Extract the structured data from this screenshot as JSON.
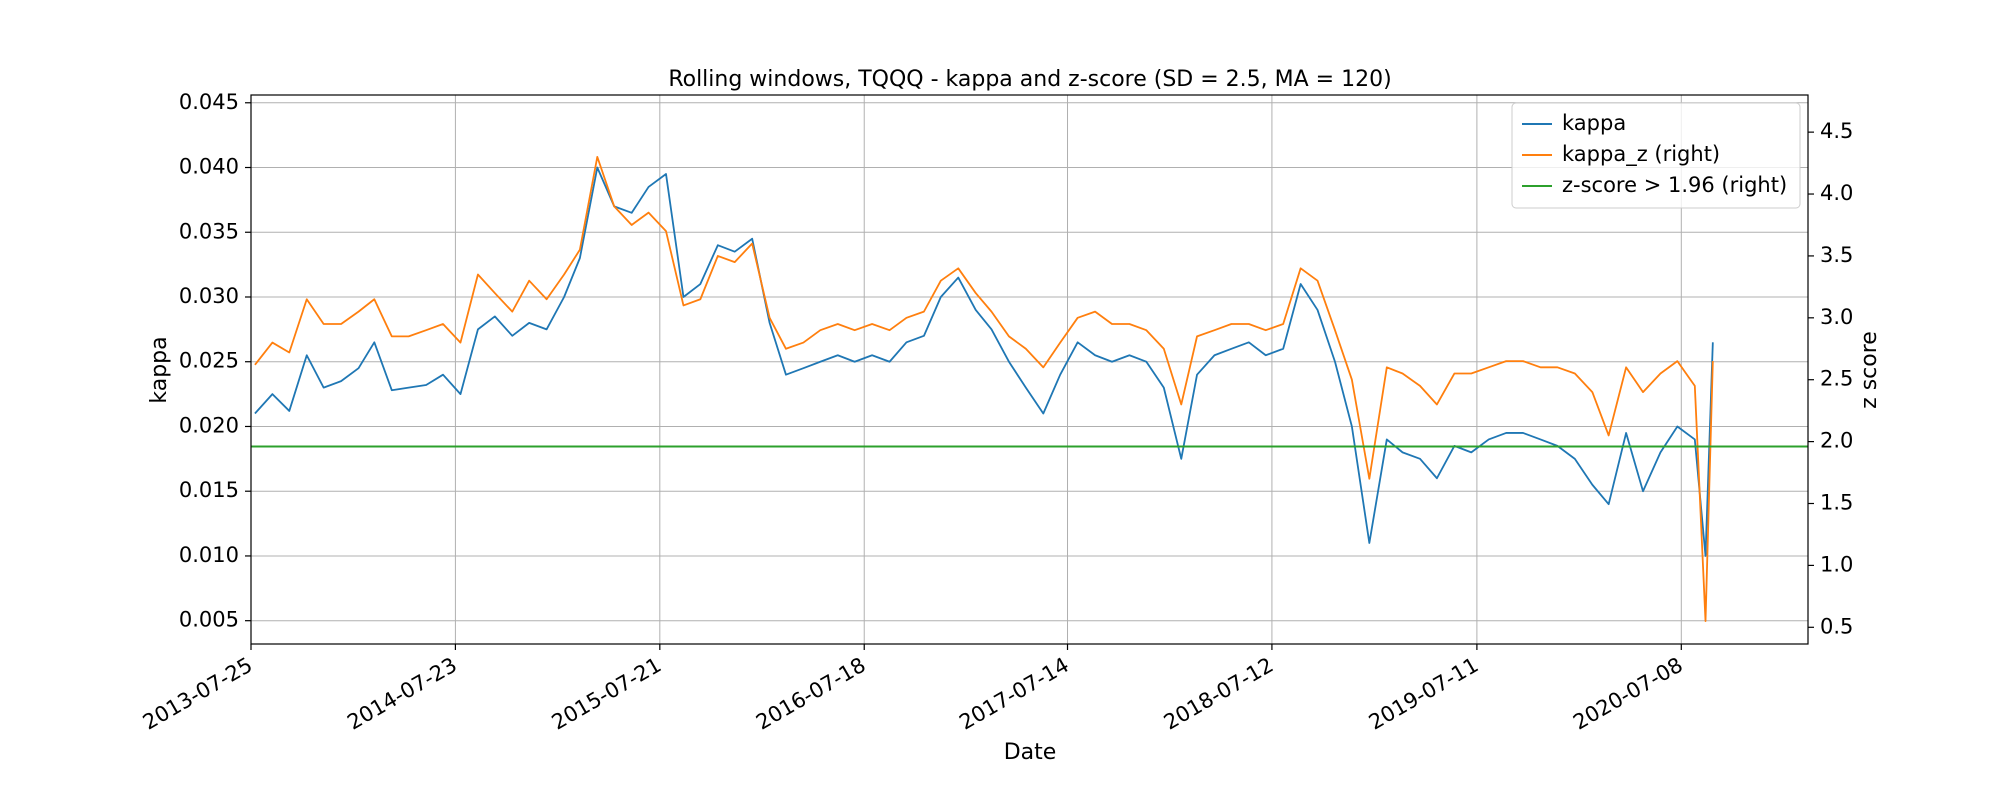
{
  "chart_data": {
    "type": "line",
    "title": "Rolling windows, TQQQ - kappa and z-score (SD = 2.5, MA = 120)",
    "x_label": "Date",
    "y_label": "kappa",
    "y2_label": "z score",
    "grid": true,
    "legend": "upper right",
    "xlim": [
      "2013-07-25",
      "2021-02-18"
    ],
    "xticks": [
      "2013-07-25",
      "2014-07-23",
      "2015-07-21",
      "2016-07-18",
      "2017-07-14",
      "2018-07-12",
      "2019-07-11",
      "2020-07-08"
    ],
    "ylim": [
      0.0032,
      0.0456
    ],
    "yticks": [
      0.005,
      {
        "value": 0.01,
        "label": "0.010"
      },
      0.015,
      {
        "value": 0.02,
        "label": "0.020"
      },
      0.025,
      {
        "value": 0.03,
        "label": "0.030"
      },
      0.035,
      {
        "value": 0.04,
        "label": "0.040"
      },
      0.045
    ],
    "y2lim": [
      0.365,
      4.8
    ],
    "y2ticks": [
      0.5,
      {
        "value": 1,
        "label": "1.0"
      },
      1.5,
      {
        "value": 2,
        "label": "2.0"
      },
      2.5,
      {
        "value": 3,
        "label": "3.0"
      },
      3.5,
      {
        "value": 4,
        "label": "4.0"
      },
      4.5
    ],
    "x": [
      "2013-08-01",
      "2013-09-01",
      "2013-10-01",
      "2013-11-01",
      "2013-12-01",
      "2014-01-01",
      "2014-02-01",
      "2014-03-01",
      "2014-04-01",
      "2014-05-01",
      "2014-06-01",
      "2014-07-01",
      "2014-08-01",
      "2014-09-01",
      "2014-10-01",
      "2014-11-01",
      "2014-12-01",
      "2015-01-01",
      "2015-02-01",
      "2015-03-01",
      "2015-04-01",
      "2015-05-01",
      "2015-06-01",
      "2015-07-01",
      "2015-08-01",
      "2015-09-01",
      "2015-10-01",
      "2015-11-01",
      "2015-12-01",
      "2016-01-01",
      "2016-02-01",
      "2016-03-01",
      "2016-04-01",
      "2016-05-01",
      "2016-06-01",
      "2016-07-01",
      "2016-08-01",
      "2016-09-01",
      "2016-10-01",
      "2016-11-01",
      "2016-12-01",
      "2017-01-01",
      "2017-02-01",
      "2017-03-01",
      "2017-04-01",
      "2017-05-01",
      "2017-06-01",
      "2017-07-01",
      "2017-08-01",
      "2017-09-01",
      "2017-10-01",
      "2017-11-01",
      "2017-12-01",
      "2018-01-01",
      "2018-02-01",
      "2018-03-01",
      "2018-04-01",
      "2018-05-01",
      "2018-06-01",
      "2018-07-01",
      "2018-08-01",
      "2018-09-01",
      "2018-10-01",
      "2018-11-01",
      "2018-12-01",
      "2019-01-01",
      "2019-02-01",
      "2019-03-01",
      "2019-04-01",
      "2019-05-01",
      "2019-06-01",
      "2019-07-01",
      "2019-08-01",
      "2019-09-01",
      "2019-10-01",
      "2019-11-01",
      "2019-12-01",
      "2020-01-01",
      "2020-02-01",
      "2020-03-01",
      "2020-04-01",
      "2020-05-01",
      "2020-06-01",
      "2020-07-01",
      "2020-08-01",
      "2020-08-20",
      "2020-09-02"
    ],
    "series": [
      {
        "name": "kappa",
        "color": "#1f77b4",
        "axis": "y",
        "values": [
          0.021,
          0.0225,
          0.0212,
          0.0255,
          0.023,
          0.0235,
          0.0245,
          0.0265,
          0.0228,
          0.023,
          0.0232,
          0.024,
          0.0225,
          0.0275,
          0.0285,
          0.027,
          0.028,
          0.0275,
          0.03,
          0.033,
          0.04,
          0.037,
          0.0365,
          0.0385,
          0.0395,
          0.03,
          0.031,
          0.034,
          0.0335,
          0.0345,
          0.028,
          0.024,
          0.0245,
          0.025,
          0.0255,
          0.025,
          0.0255,
          0.025,
          0.0265,
          0.027,
          0.03,
          0.0315,
          0.029,
          0.0275,
          0.025,
          0.023,
          0.021,
          0.024,
          0.0265,
          0.0255,
          0.025,
          0.0255,
          0.025,
          0.023,
          0.0175,
          0.024,
          0.0255,
          0.026,
          0.0265,
          0.0255,
          0.026,
          0.031,
          0.029,
          0.025,
          0.02,
          0.011,
          0.019,
          0.018,
          0.0175,
          0.016,
          0.0185,
          0.018,
          0.019,
          0.0195,
          0.0195,
          0.019,
          0.0185,
          0.0175,
          0.0155,
          0.014,
          0.0195,
          0.015,
          0.018,
          0.02,
          0.019,
          0.01,
          0.0265
        ]
      },
      {
        "name": "kappa_z (right)",
        "color": "#ff7f0e",
        "axis": "y2",
        "values": [
          2.62,
          2.8,
          2.72,
          3.15,
          2.95,
          2.95,
          3.05,
          3.15,
          2.85,
          2.85,
          2.9,
          2.95,
          2.8,
          3.35,
          3.2,
          3.05,
          3.3,
          3.15,
          3.35,
          3.55,
          4.3,
          3.9,
          3.75,
          3.85,
          3.7,
          3.1,
          3.15,
          3.5,
          3.45,
          3.6,
          3.0,
          2.75,
          2.8,
          2.9,
          2.95,
          2.9,
          2.95,
          2.9,
          3.0,
          3.05,
          3.3,
          3.4,
          3.2,
          3.05,
          2.85,
          2.75,
          2.6,
          2.8,
          3.0,
          3.05,
          2.95,
          2.95,
          2.9,
          2.75,
          2.3,
          2.85,
          2.9,
          2.95,
          2.95,
          2.9,
          2.95,
          3.4,
          3.3,
          2.9,
          2.5,
          1.7,
          2.6,
          2.55,
          2.45,
          2.3,
          2.55,
          2.55,
          2.6,
          2.65,
          2.65,
          2.6,
          2.6,
          2.55,
          2.4,
          2.05,
          2.6,
          2.4,
          2.55,
          2.65,
          2.45,
          0.55,
          2.65
        ]
      }
    ],
    "hlines": [
      {
        "name": "z-score > 1.96 (right)",
        "color": "#2ca02c",
        "axis": "y2",
        "value": 1.96
      }
    ]
  }
}
